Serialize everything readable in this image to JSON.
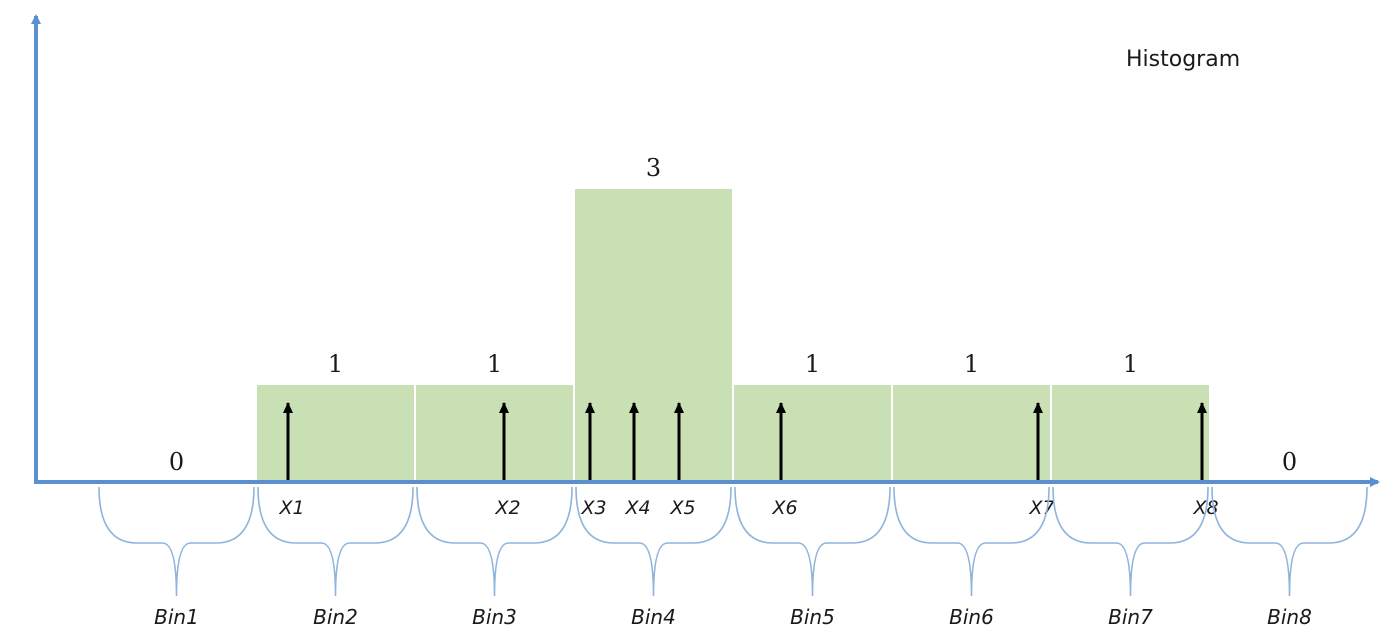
{
  "title": "Histogram",
  "colors": {
    "axis": "#5b8fd0",
    "bar_fill": "#c8e0b4",
    "bar_divider": "#ffffff",
    "arrow": "#000000",
    "brace": "#8fb4dd"
  },
  "bins": [
    {
      "label": "Bin1",
      "count": 0
    },
    {
      "label": "Bin2",
      "count": 1
    },
    {
      "label": "Bin3",
      "count": 1
    },
    {
      "label": "Bin4",
      "count": 3
    },
    {
      "label": "Bin5",
      "count": 1
    },
    {
      "label": "Bin6",
      "count": 1
    },
    {
      "label": "Bin7",
      "count": 1
    },
    {
      "label": "Bin8",
      "count": 0
    }
  ],
  "samples": [
    {
      "label": "X1",
      "bin": 2
    },
    {
      "label": "X2",
      "bin": 3
    },
    {
      "label": "X3",
      "bin": 4
    },
    {
      "label": "X4",
      "bin": 4
    },
    {
      "label": "X5",
      "bin": 4
    },
    {
      "label": "X6",
      "bin": 5
    },
    {
      "label": "X7",
      "bin": 6
    },
    {
      "label": "X8",
      "bin": 7
    }
  ]
}
